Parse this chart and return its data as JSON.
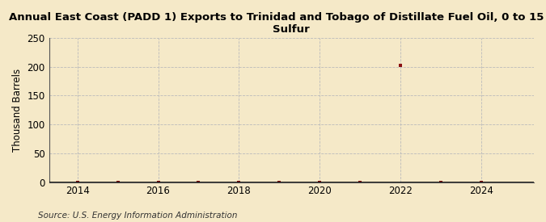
{
  "title": "Annual East Coast (PADD 1) Exports to Trinidad and Tobago of Distillate Fuel Oil, 0 to 15 ppm\nSulfur",
  "ylabel": "Thousand Barrels",
  "source": "Source: U.S. Energy Information Administration",
  "background_color": "#f5e9c8",
  "plot_bg_color": "#f5e9c8",
  "x": [
    2014,
    2015,
    2016,
    2017,
    2018,
    2019,
    2020,
    2021,
    2022,
    2023,
    2024
  ],
  "y": [
    0,
    0,
    0,
    0,
    0,
    0,
    0,
    0,
    202,
    0,
    0
  ],
  "marker_color": "#8b1010",
  "xlim": [
    2013.3,
    2025.3
  ],
  "ylim": [
    0,
    250
  ],
  "yticks": [
    0,
    50,
    100,
    150,
    200,
    250
  ],
  "xticks": [
    2014,
    2016,
    2018,
    2020,
    2022,
    2024
  ],
  "grid_color": "#bbbbbb",
  "title_fontsize": 9.5,
  "label_fontsize": 8.5,
  "tick_fontsize": 8.5,
  "source_fontsize": 7.5
}
